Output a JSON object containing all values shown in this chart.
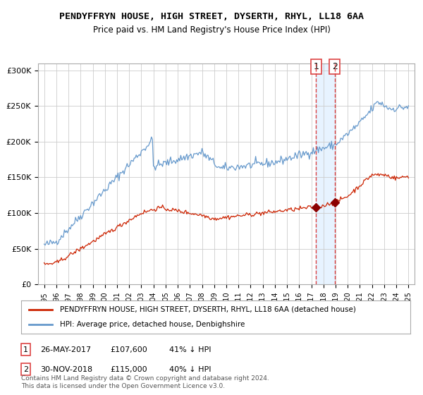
{
  "title": "PENDYFFRYN HOUSE, HIGH STREET, DYSERTH, RHYL, LL18 6AA",
  "subtitle": "Price paid vs. HM Land Registry's House Price Index (HPI)",
  "hpi_color": "#6699cc",
  "price_color": "#cc2200",
  "marker_color": "#8b0000",
  "vline_color": "#dd4444",
  "vband_color": "#ddeeff",
  "ylim": [
    0,
    310000
  ],
  "yticks": [
    0,
    50000,
    100000,
    150000,
    200000,
    250000,
    300000
  ],
  "ytick_labels": [
    "£0",
    "£50K",
    "£100K",
    "£150K",
    "£200K",
    "£250K",
    "£300K"
  ],
  "year_start": 1995,
  "year_end": 2025,
  "transaction1_date": 2017.4,
  "transaction1_price": 107600,
  "transaction1_label": "1",
  "transaction2_date": 2018.92,
  "transaction2_price": 115000,
  "transaction2_label": "2",
  "legend_line1": "PENDYFFRYN HOUSE, HIGH STREET, DYSERTH, RHYL, LL18 6AA (detached house)",
  "legend_line2": "HPI: Average price, detached house, Denbighshire",
  "table_row1": [
    "1",
    "26-MAY-2017",
    "£107,600",
    "41% ↓ HPI"
  ],
  "table_row2": [
    "2",
    "30-NOV-2018",
    "£115,000",
    "40% ↓ HPI"
  ],
  "footer": "Contains HM Land Registry data © Crown copyright and database right 2024.\nThis data is licensed under the Open Government Licence v3.0.",
  "background_color": "#ffffff",
  "grid_color": "#cccccc"
}
